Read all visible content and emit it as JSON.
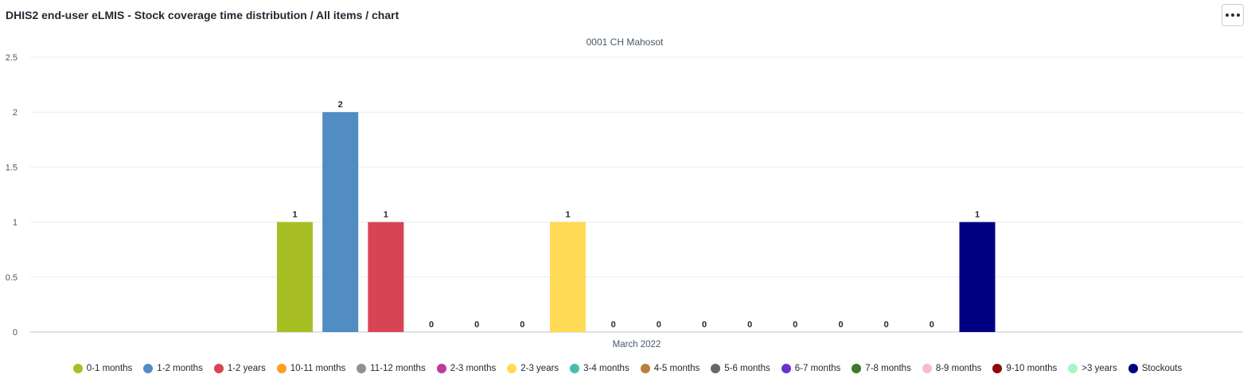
{
  "header": {
    "title": "DHIS2 end-user eLMIS - Stock coverage time distribution / All items / chart",
    "menu_icon": "more-horizontal-icon"
  },
  "chart_data": {
    "type": "bar",
    "subtitle": "0001 CH Mahosot",
    "categories": [
      "March 2022"
    ],
    "xlabel": "",
    "ylabel": "",
    "ylim": [
      0,
      2.5
    ],
    "yticks": [
      "0",
      "0.5",
      "1",
      "1.5",
      "2",
      "2.5"
    ],
    "grid": true,
    "legend_position": "bottom",
    "series": [
      {
        "name": "0-1 months",
        "color": "#a8bf24",
        "values": [
          1
        ]
      },
      {
        "name": "1-2 months",
        "color": "#518cc3",
        "values": [
          2
        ]
      },
      {
        "name": "1-2 years",
        "color": "#d74554",
        "values": [
          1
        ]
      },
      {
        "name": "10-11 months",
        "color": "#ff9e21",
        "values": [
          0
        ]
      },
      {
        "name": "11-12 months",
        "color": "#968f8f",
        "values": [
          0
        ]
      },
      {
        "name": "2-3 months",
        "color": "#ba3ba1",
        "values": [
          0
        ]
      },
      {
        "name": "2-3 years",
        "color": "#ffda54",
        "values": [
          1
        ]
      },
      {
        "name": "3-4 months",
        "color": "#45beae",
        "values": [
          0
        ]
      },
      {
        "name": "4-5 months",
        "color": "#b98037",
        "values": [
          0
        ]
      },
      {
        "name": "5-6 months",
        "color": "#676767",
        "values": [
          0
        ]
      },
      {
        "name": "6-7 months",
        "color": "#6b31cd",
        "values": [
          0
        ]
      },
      {
        "name": "7-8 months",
        "color": "#3d7a29",
        "values": [
          0
        ]
      },
      {
        "name": "8-9 months",
        "color": "#f4bfc3",
        "values": [
          0
        ]
      },
      {
        "name": "9-10 months",
        "color": "#8b0b0b",
        "values": [
          0
        ]
      },
      {
        "name": ">3 years",
        "color": "#a5f5c5",
        "values": [
          0
        ]
      },
      {
        "name": "Stockouts",
        "color": "#000080",
        "values": [
          1
        ]
      }
    ]
  }
}
